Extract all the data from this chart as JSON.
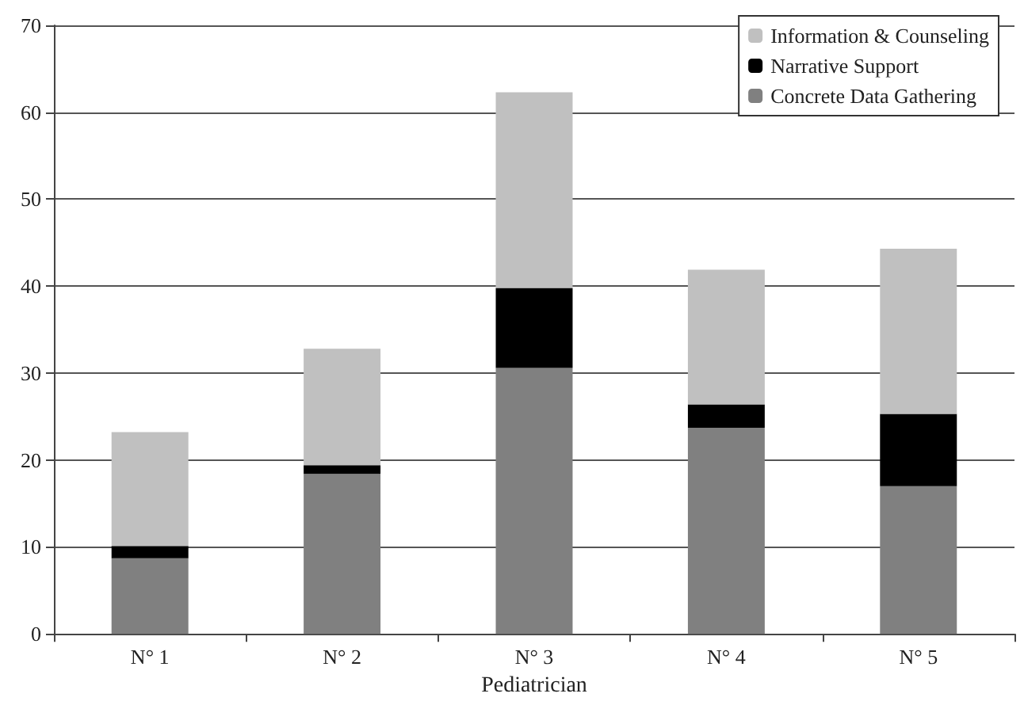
{
  "chart_data": {
    "type": "bar",
    "stacked": true,
    "xlabel": "Pediatrician",
    "categories": [
      "N° 1",
      "N° 2",
      "N° 3",
      "N° 4",
      "N° 5"
    ],
    "series": [
      {
        "name": "Concrete Data Gathering",
        "color": "#808080",
        "values": [
          8.7,
          18.4,
          30.6,
          23.7,
          17.0
        ]
      },
      {
        "name": "Narrative Support",
        "color": "#000000",
        "values": [
          1.4,
          1.0,
          9.2,
          2.7,
          8.3
        ]
      },
      {
        "name": "Information & Counseling",
        "color": "#c0c0c0",
        "values": [
          13.1,
          13.4,
          22.5,
          15.5,
          19.0
        ]
      }
    ],
    "ylim": [
      0,
      70
    ],
    "yticks": [
      0,
      10,
      20,
      30,
      40,
      50,
      60,
      70
    ],
    "grid": "y",
    "legend": "top right"
  }
}
